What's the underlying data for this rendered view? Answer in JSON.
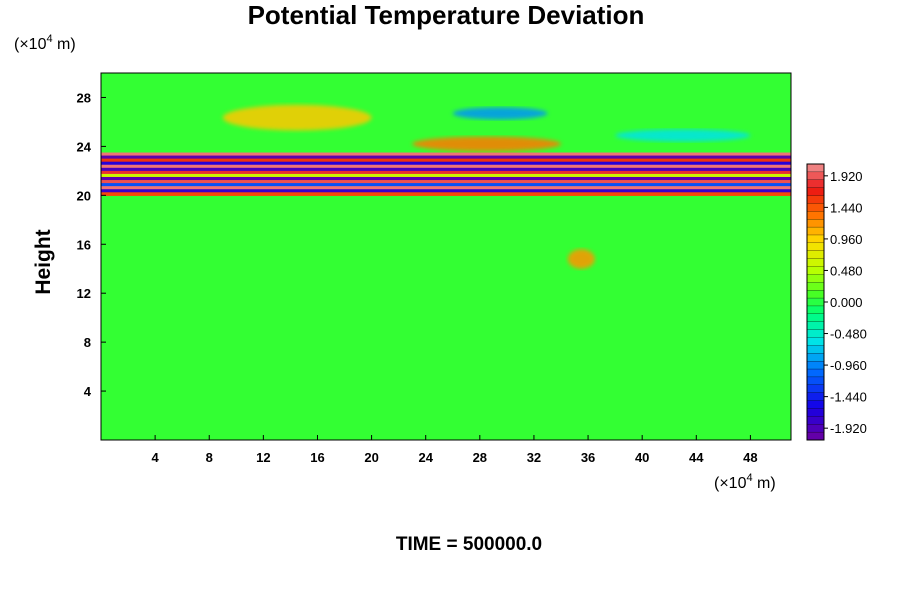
{
  "chart_data": {
    "type": "heatmap",
    "title": "Potential Temperature Deviation",
    "ylabel": "Height",
    "xlabel": "",
    "x_unit_prefix": "(×10",
    "x_unit_exp": "4",
    "x_unit_suffix": " m)",
    "y_unit_prefix": "(×10",
    "y_unit_exp": "4",
    "y_unit_suffix": " m)",
    "xlim": [
      0,
      51
    ],
    "ylim": [
      0,
      30
    ],
    "x_ticks": [
      4,
      8,
      12,
      16,
      20,
      24,
      28,
      32,
      36,
      40,
      44,
      48
    ],
    "y_ticks": [
      4,
      8,
      12,
      16,
      20,
      24,
      28
    ],
    "colorbar": {
      "min": -2.1,
      "max": 2.1,
      "tick_values": [
        1.92,
        1.44,
        0.96,
        0.48,
        0.0,
        -0.48,
        -0.96,
        -1.44,
        -1.92
      ],
      "tick_labels": [
        "1.920",
        "1.440",
        "0.960",
        "0.480",
        "0.000",
        "-0.480",
        "-0.960",
        "-1.440",
        "-1.920"
      ],
      "levels": 35
    },
    "features": [
      {
        "x": [
          9,
          20
        ],
        "y": [
          25.3,
          27.4
        ],
        "value": 1.0
      },
      {
        "x": [
          23,
          34
        ],
        "y": [
          23.6,
          24.8
        ],
        "value": 1.3
      },
      {
        "x": [
          26,
          33
        ],
        "y": [
          26.2,
          27.2
        ],
        "value": -0.9
      },
      {
        "x": [
          38,
          48
        ],
        "y": [
          24.4,
          25.4
        ],
        "value": -0.6
      },
      {
        "x": [
          0,
          51
        ],
        "y": [
          20.0,
          23.5
        ],
        "value": 1.9
      },
      {
        "x": [
          34.5,
          36.5
        ],
        "y": [
          14.0,
          15.6
        ],
        "value": 1.2
      }
    ]
  },
  "annotation": {
    "time_label": "TIME = 500000.0"
  },
  "colors": {
    "background_field": "#33ff33",
    "frame": "#000000"
  }
}
